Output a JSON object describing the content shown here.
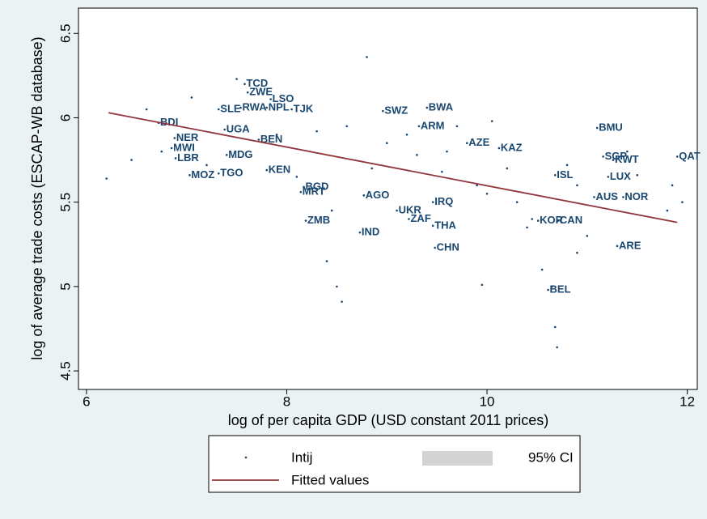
{
  "chart_data": {
    "type": "scatter",
    "xlabel": "log of per capita GDP (USD constant 2011 prices)",
    "ylabel": "log of average trade costs (ESCAP-WB database)",
    "xlim": [
      5.92,
      12.1
    ],
    "ylim": [
      4.39,
      6.65
    ],
    "xticks": [
      6,
      8,
      10,
      12
    ],
    "yticks": [
      4.5,
      5,
      5.5,
      6,
      6.5
    ],
    "series": [
      {
        "name": "Intij",
        "color": "#1a476f",
        "x": [
          7.58,
          7.61,
          7.84,
          7.32,
          7.54,
          7.8,
          8.05,
          8.96,
          9.4,
          11.1,
          6.72,
          7.38,
          6.88,
          7.72,
          6.85,
          7.4,
          6.89,
          9.32,
          9.8,
          10.12,
          7.03,
          7.32,
          7.8,
          8.17,
          8.14,
          8.77,
          9.1,
          8.19,
          8.73,
          9.48,
          9.22,
          9.46,
          9.46,
          10.68,
          11.21,
          11.16,
          11.26,
          11.9,
          11.36,
          11.3,
          10.61,
          10.51,
          10.71,
          11.07,
          6.2,
          6.45,
          6.6,
          6.75,
          7.05,
          7.2,
          7.5,
          7.9,
          8.1,
          8.3,
          8.45,
          8.55,
          8.6,
          8.8,
          8.85,
          9.0,
          9.2,
          9.3,
          9.55,
          9.7,
          9.9,
          9.95,
          10.05,
          10.2,
          10.3,
          10.45,
          10.55,
          10.65,
          10.68,
          10.7,
          10.8,
          10.9,
          11.0,
          11.4,
          11.5,
          11.8,
          11.85,
          11.95,
          8.5,
          8.4,
          9.6,
          10.0,
          10.4,
          10.9
        ],
        "y": [
          6.2,
          6.15,
          6.11,
          6.05,
          6.06,
          6.06,
          6.05,
          6.04,
          6.06,
          5.94,
          5.97,
          5.93,
          5.88,
          5.87,
          5.82,
          5.78,
          5.76,
          5.95,
          5.85,
          5.82,
          5.66,
          5.67,
          5.69,
          5.59,
          5.56,
          5.54,
          5.45,
          5.39,
          5.32,
          5.23,
          5.4,
          5.36,
          5.5,
          5.66,
          5.65,
          5.77,
          5.75,
          5.77,
          5.53,
          5.24,
          4.98,
          5.39,
          5.39,
          5.53,
          5.64,
          5.75,
          6.05,
          5.8,
          6.12,
          5.72,
          6.23,
          5.9,
          5.65,
          5.92,
          5.45,
          4.91,
          5.95,
          6.36,
          5.7,
          5.85,
          5.9,
          5.78,
          5.68,
          5.95,
          5.6,
          5.01,
          5.98,
          5.7,
          5.5,
          5.4,
          5.1,
          5.0,
          4.76,
          4.64,
          5.72,
          5.6,
          5.3,
          5.8,
          5.66,
          5.45,
          5.6,
          5.5,
          5.0,
          5.15,
          5.8,
          5.55,
          5.35,
          5.2
        ],
        "labels": [
          "TCD",
          "ZWE",
          "LSO",
          "SLE",
          "RWA",
          "NPL",
          "TJK",
          "SWZ",
          "BWA",
          "BMU",
          "BDI",
          "UGA",
          "NER",
          "BEN",
          "MWI",
          "MDG",
          "LBR",
          "ARM",
          "AZE",
          "KAZ",
          "MOZ",
          "TGO",
          "KEN",
          "BGD",
          "MRT",
          "AGO",
          "UKR",
          "ZMB",
          "IND",
          "CHN",
          "ZAF",
          "THA",
          "IRQ",
          "ISL",
          "LUX",
          "SGP",
          "KWT",
          "QAT",
          "NOR",
          "ARE",
          "BEL",
          "KOR",
          "CAN",
          "AUS",
          null,
          null,
          null,
          null,
          null,
          null,
          null,
          null,
          null,
          null,
          null,
          null,
          null,
          null,
          null,
          null,
          null,
          null,
          null,
          null,
          null,
          null,
          null,
          null,
          null,
          null,
          null,
          null,
          null,
          null,
          null,
          null,
          null,
          null,
          null,
          null,
          null,
          null,
          null,
          null,
          null,
          null,
          null,
          null
        ]
      },
      {
        "name": "Fitted values",
        "color": "#90353b",
        "x": [
          6.22,
          11.9
        ],
        "y": [
          6.03,
          5.38
        ]
      },
      {
        "name": "95% CI",
        "color": "#d3d3d3"
      }
    ]
  }
}
